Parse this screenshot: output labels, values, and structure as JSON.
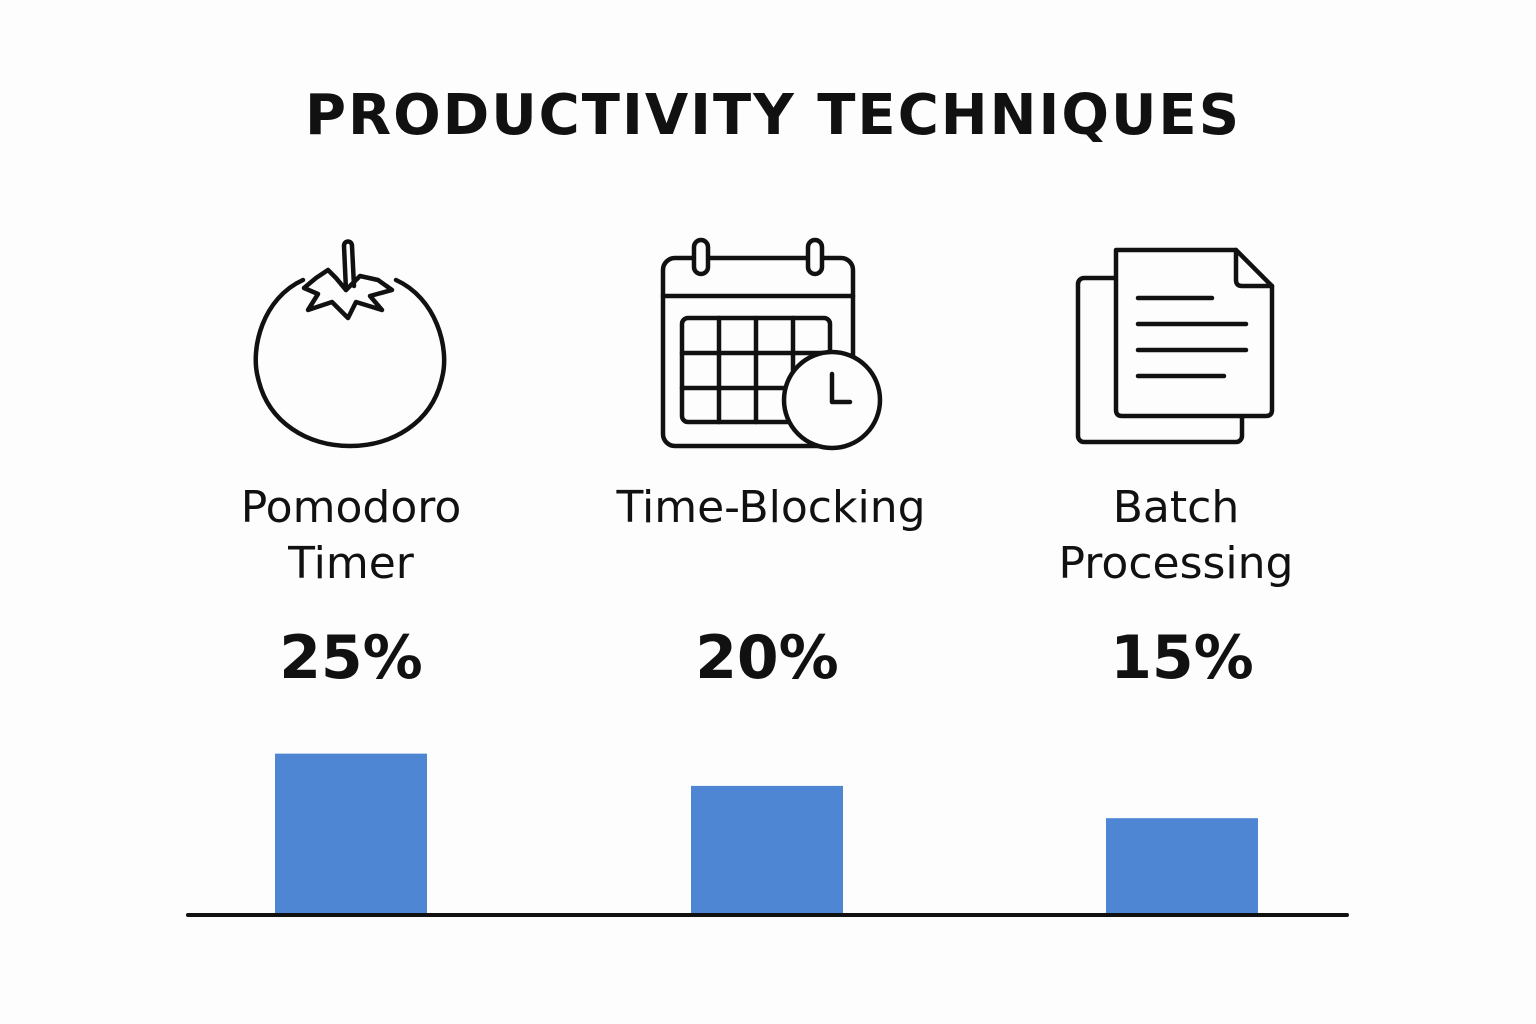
{
  "page": {
    "title": "PRODUCTIVITY TECHNIQUES"
  },
  "techniques": [
    {
      "label": "Pomodoro\nTimer",
      "icon": "tomato-icon"
    },
    {
      "label": "Time-Blocking",
      "icon": "calendar-clock-icon"
    },
    {
      "label": "Batch\nProcessing",
      "icon": "documents-icon"
    }
  ],
  "chart_data": {
    "type": "bar",
    "title": "PRODUCTIVITY TECHNIQUES",
    "categories": [
      "Pomodoro Timer",
      "Time-Blocking",
      "Batch Processing"
    ],
    "values": [
      25,
      20,
      15
    ],
    "data_labels": [
      "25%",
      "20%",
      "15%"
    ],
    "xlabel": "",
    "ylabel": "",
    "ylim": [
      0,
      55
    ],
    "grid": false,
    "legend": "none",
    "bar_color": "#4f86d4",
    "axis_color": "#111111"
  }
}
